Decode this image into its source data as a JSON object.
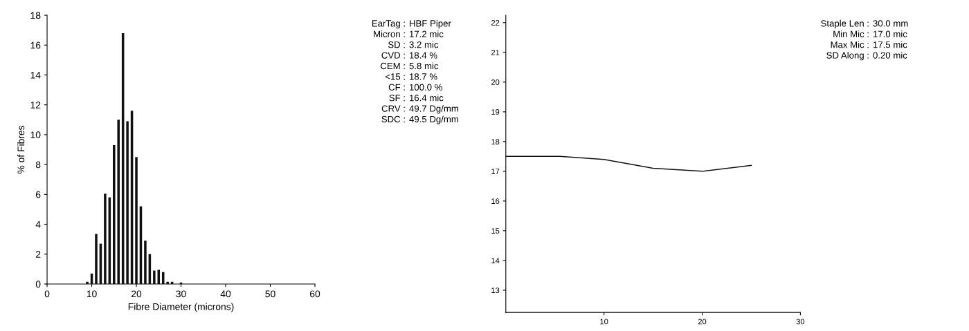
{
  "chart_data": [
    {
      "type": "bar",
      "xlabel": "Fibre Diameter (microns)",
      "ylabel": "% of Fibres",
      "x": [
        9,
        10,
        11,
        12,
        13,
        14,
        15,
        16,
        17,
        18,
        19,
        20,
        21,
        22,
        23,
        24,
        25,
        26,
        27,
        28,
        29,
        30
      ],
      "values": [
        0.15,
        0.7,
        3.35,
        2.7,
        6.05,
        5.8,
        9.3,
        11.0,
        16.8,
        10.9,
        11.6,
        8.5,
        5.2,
        2.9,
        2.0,
        0.9,
        0.95,
        0.8,
        0.15,
        0.15,
        0,
        0.1
      ],
      "color": "#111111",
      "xlim": [
        0,
        60
      ],
      "xticks": [
        0,
        10,
        20,
        30,
        40,
        50,
        60
      ],
      "ylim": [
        0,
        18
      ],
      "yticks": [
        0,
        2,
        4,
        6,
        8,
        10,
        12,
        14,
        16,
        18
      ],
      "grid": false,
      "legend": false,
      "annotations": [
        "EarTag : HBF Piper",
        "Micron : 17.2 mic",
        "SD : 3.2 mic",
        "CVD : 18.4 %",
        "CEM : 5.8 mic",
        "<15 : 18.7 %",
        "CF : 100.0 %",
        "SF : 16.4 mic",
        "CRV : 49.7 Dg/mm",
        "SDC : 49.5 Dg/mm"
      ]
    },
    {
      "type": "line",
      "x": [
        0,
        5.5,
        10,
        15,
        20,
        25
      ],
      "values": [
        17.5,
        17.5,
        17.4,
        17.1,
        17.0,
        17.2
      ],
      "color": "#111111",
      "xlim": [
        0,
        30
      ],
      "xticks": [
        10,
        20,
        30
      ],
      "ylim": [
        12.25,
        22.25
      ],
      "yticks": [
        13,
        14,
        15,
        16,
        17,
        18,
        19,
        20,
        21,
        22
      ],
      "grid": false,
      "legend": false,
      "marker": "none",
      "line_style": "solid",
      "annotations": [
        "Staple Len : 30.0 mm",
        "Min Mic : 17.0 mic",
        "Max Mic : 17.5 mic",
        "SD Along : 0.20 mic"
      ]
    }
  ]
}
